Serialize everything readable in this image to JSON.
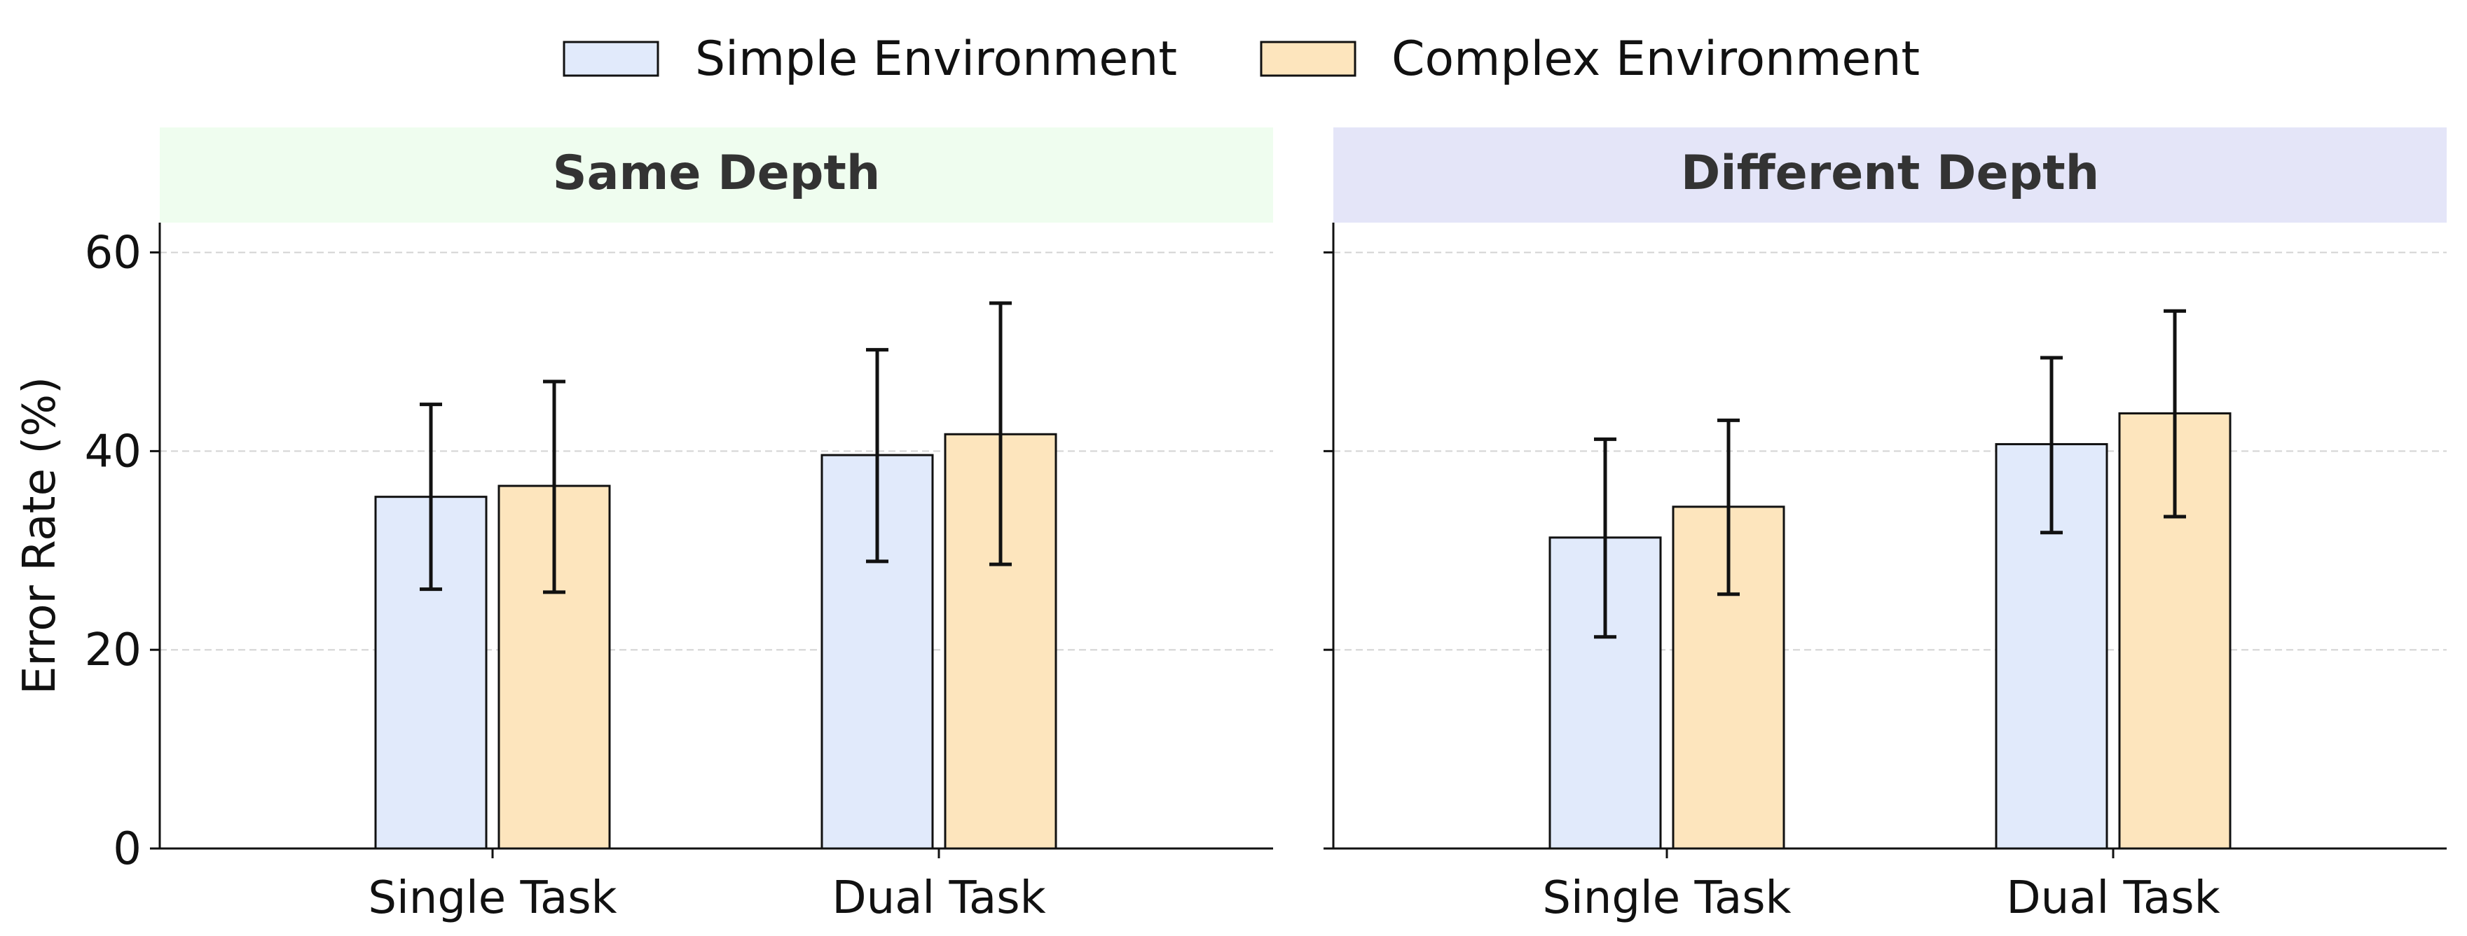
{
  "chart_data": {
    "type": "bar",
    "ylabel": "Error Rate (%)",
    "ylim": [
      0,
      63
    ],
    "yticks": [
      "0",
      "20",
      "40",
      "60"
    ],
    "grid": "horizontal dashed",
    "legend": {
      "placement": "top-center",
      "entries": [
        {
          "name": "Simple Environment",
          "color": "#e1eafb"
        },
        {
          "name": "Complex Environment",
          "color": "#fde5bd"
        }
      ]
    },
    "panels": [
      {
        "title": "Same Depth",
        "header_color": "#effdef",
        "categories": [
          "Single Task",
          "Dual Task"
        ],
        "series": [
          {
            "name": "Simple Environment",
            "values": [
              35.4,
              39.6
            ],
            "err_low": [
              26.1,
              28.9
            ],
            "err_high": [
              44.7,
              50.2
            ]
          },
          {
            "name": "Complex Environment",
            "values": [
              36.5,
              41.7
            ],
            "err_low": [
              25.8,
              28.6
            ],
            "err_high": [
              47.0,
              54.9
            ]
          }
        ]
      },
      {
        "title": "Different Depth",
        "header_color": "#e4e5f8",
        "categories": [
          "Single Task",
          "Dual Task"
        ],
        "series": [
          {
            "name": "Simple Environment",
            "values": [
              31.3,
              40.7
            ],
            "err_low": [
              21.3,
              31.8
            ],
            "err_high": [
              41.2,
              49.4
            ]
          },
          {
            "name": "Complex Environment",
            "values": [
              34.4,
              43.8
            ],
            "err_low": [
              25.6,
              33.4
            ],
            "err_high": [
              43.1,
              54.1
            ]
          }
        ]
      }
    ]
  }
}
